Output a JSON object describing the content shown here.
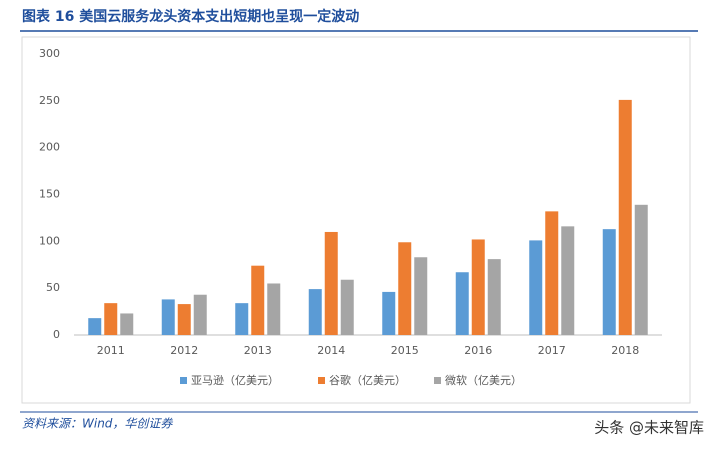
{
  "chart_data": {
    "type": "bar",
    "title": "图表 16   美国云服务龙头资本支出短期也呈现一定波动",
    "categories": [
      "2011",
      "2012",
      "2013",
      "2014",
      "2015",
      "2016",
      "2017",
      "2018"
    ],
    "series": [
      {
        "name": "亚马逊（亿美元）",
        "color": "#5b9bd5",
        "values": [
          18,
          38,
          34,
          49,
          46,
          67,
          101,
          113
        ]
      },
      {
        "name": "谷歌（亿美元）",
        "color": "#ed7d31",
        "values": [
          34,
          33,
          74,
          110,
          99,
          102,
          132,
          251
        ]
      },
      {
        "name": "微软（亿美元）",
        "color": "#a5a5a5",
        "values": [
          23,
          43,
          55,
          59,
          83,
          81,
          116,
          139
        ]
      }
    ],
    "ylim": [
      0,
      300
    ],
    "yticks": [
      0,
      50,
      100,
      150,
      200,
      250,
      300
    ],
    "grid": false,
    "legend": "bottom"
  },
  "source": "资料来源：Wind，华创证券",
  "watermark": "头条 @未来智库"
}
